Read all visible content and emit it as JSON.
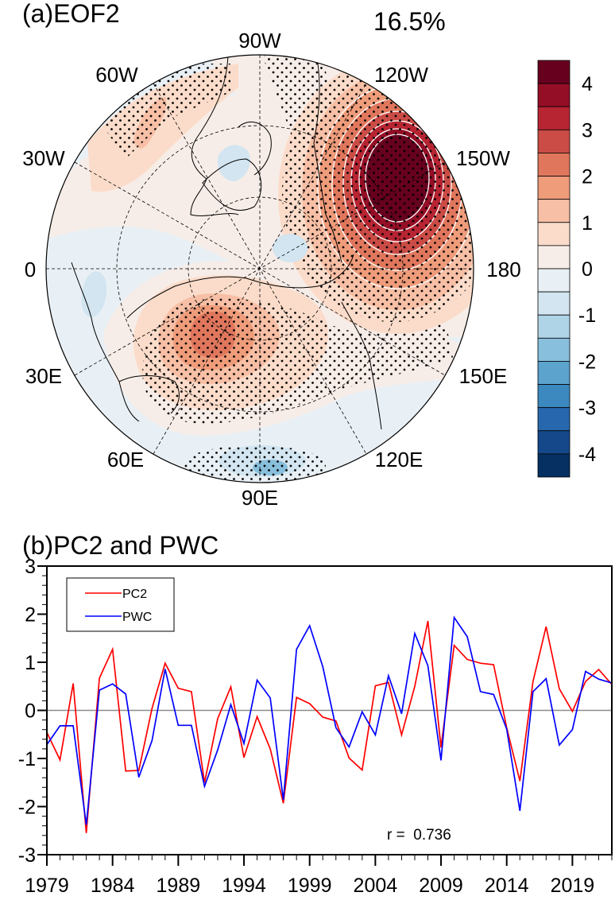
{
  "panel_a": {
    "title": "(a)EOF2",
    "variance": "16.5%",
    "longitude_labels": [
      {
        "lon": "90W",
        "angle_deg": 90
      },
      {
        "lon": "120W",
        "angle_deg": 60
      },
      {
        "lon": "150W",
        "angle_deg": 30
      },
      {
        "lon": "180",
        "angle_deg": 0
      },
      {
        "lon": "150E",
        "angle_deg": -30
      },
      {
        "lon": "120E",
        "angle_deg": -60
      },
      {
        "lon": "90E",
        "angle_deg": -90
      },
      {
        "lon": "60E",
        "angle_deg": -120
      },
      {
        "lon": "30E",
        "angle_deg": -150
      },
      {
        "lon": "0",
        "angle_deg": 180
      },
      {
        "lon": "30W",
        "angle_deg": 150
      },
      {
        "lon": "60W",
        "angle_deg": 120
      }
    ],
    "colorbar": {
      "levels": [
        4.5,
        4,
        3.5,
        3,
        2.5,
        2,
        1.5,
        1,
        0.5,
        0,
        -0.5,
        -1,
        -1.5,
        -2,
        -2.5,
        -3,
        -3.5,
        -4,
        -4.5
      ],
      "tick_labels": [
        "4",
        "3",
        "2",
        "1",
        "0",
        "-1",
        "-2",
        "-3",
        "-4"
      ],
      "colors": [
        "#67001f",
        "#940e26",
        "#b72432",
        "#cb4c46",
        "#e0775d",
        "#ef9c7b",
        "#f7bfa5",
        "#fbdcca",
        "#f7ede8",
        "#e9f0f5",
        "#d2e5f0",
        "#b0d4e7",
        "#88bfdc",
        "#5ca3cd",
        "#3c89bf",
        "#2767ad",
        "#15488a",
        "#053061"
      ]
    },
    "anomalies": [
      {
        "name": "north-pacific-high",
        "level": 4.5,
        "sign": "positive",
        "stippled": true
      },
      {
        "name": "east-asia-siberia-high",
        "level": 2.5,
        "sign": "positive",
        "stippled": true
      },
      {
        "name": "north-atlantic-high",
        "level": 1.5,
        "sign": "positive",
        "stippled": true
      },
      {
        "name": "indian-ocean-low",
        "level": -2,
        "sign": "negative",
        "stippled": true
      },
      {
        "name": "greenland-low",
        "level": -1,
        "sign": "negative",
        "stippled": true
      }
    ]
  },
  "chart_data": {
    "type": "line",
    "title": "(b)PC2 and PWC",
    "xlabel": "",
    "ylabel": "",
    "xlim": [
      1979,
      2022
    ],
    "ylim": [
      -3,
      3
    ],
    "x_tick_labels": [
      "1979",
      "1984",
      "1989",
      "1994",
      "1999",
      "2004",
      "2009",
      "2014",
      "2019"
    ],
    "y_tick_labels": [
      "3",
      "2",
      "1",
      "0",
      "-1",
      "-2",
      "-3"
    ],
    "reference_line": 0,
    "legend_position": "top-left",
    "annotation": "r =  0.736",
    "x": [
      1979,
      1980,
      1981,
      1982,
      1983,
      1984,
      1985,
      1986,
      1987,
      1988,
      1989,
      1990,
      1991,
      1992,
      1993,
      1994,
      1995,
      1996,
      1997,
      1998,
      1999,
      2000,
      2001,
      2002,
      2003,
      2004,
      2005,
      2006,
      2007,
      2008,
      2009,
      2010,
      2011,
      2012,
      2013,
      2014,
      2015,
      2016,
      2017,
      2018,
      2019,
      2020,
      2021,
      2022
    ],
    "series": [
      {
        "name": "PC2",
        "color": "#ff0000",
        "values": [
          -0.46,
          -1.03,
          0.56,
          -2.55,
          0.67,
          1.27,
          -1.26,
          -1.25,
          0.04,
          0.98,
          0.46,
          0.39,
          -1.5,
          -0.17,
          0.49,
          -0.98,
          -0.13,
          -0.8,
          -1.93,
          0.27,
          0.14,
          -0.14,
          -0.22,
          -0.99,
          -1.24,
          0.51,
          0.58,
          -0.51,
          0.5,
          1.86,
          -0.77,
          1.35,
          1.06,
          0.98,
          0.95,
          -0.36,
          -1.47,
          0.6,
          1.74,
          0.45,
          -0.02,
          0.6,
          0.85,
          0.54
        ]
      },
      {
        "name": "PWC",
        "color": "#0000ff",
        "values": [
          -0.71,
          -0.32,
          -0.32,
          -2.38,
          0.42,
          0.55,
          0.34,
          -1.39,
          -0.63,
          0.86,
          -0.31,
          -0.31,
          -1.58,
          -0.82,
          0.12,
          -0.69,
          0.63,
          0.26,
          -1.86,
          1.27,
          1.76,
          0.91,
          -0.36,
          -0.76,
          -0.03,
          -0.51,
          0.72,
          -0.07,
          1.6,
          0.93,
          -1.04,
          1.93,
          1.53,
          0.39,
          0.33,
          -0.39,
          -2.09,
          0.39,
          0.66,
          -0.72,
          -0.4,
          0.81,
          0.65,
          0.57
        ]
      }
    ]
  }
}
